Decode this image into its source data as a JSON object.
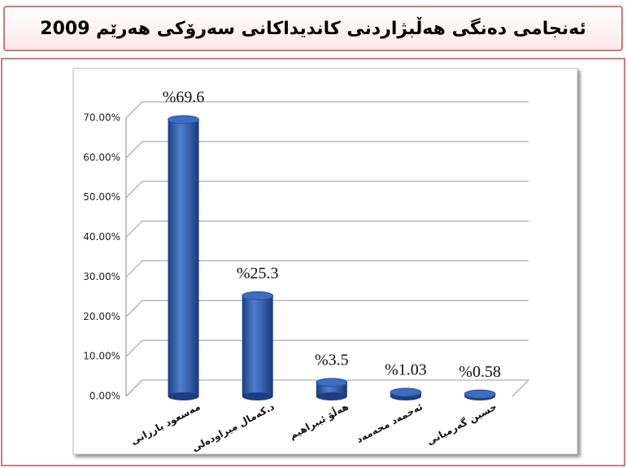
{
  "chart_data": {
    "type": "bar",
    "title": "ئەنجامی دەنگی هەڵبژاردنی کاندیداکانی سەرۆکی هەرێم 2009",
    "categories": [
      "مەسعود بارزانی",
      "د.کەمال میراودەلی",
      "هەڵۆ ئیبراهیم",
      "ئەحمەد محەمەد",
      "حسین گەرمیانی"
    ],
    "values": [
      69.6,
      25.3,
      3.5,
      1.03,
      0.58
    ],
    "value_labels": [
      "%69.6",
      "%25.3",
      "%3.5",
      "%1.03",
      "%0.58"
    ],
    "color": "#2f5aa8",
    "ylim": [
      0,
      70
    ],
    "yticks": [
      {
        "value": 0,
        "label": "0.00%"
      },
      {
        "value": 10,
        "label": "10.00%"
      },
      {
        "value": 20,
        "label": "20.00%"
      },
      {
        "value": 30,
        "label": "30.00%"
      },
      {
        "value": 40,
        "label": "40.00%"
      },
      {
        "value": 50,
        "label": "50.00%"
      },
      {
        "value": 60,
        "label": "60.00%"
      },
      {
        "value": 70,
        "label": "70.00%"
      }
    ],
    "grid": true
  }
}
